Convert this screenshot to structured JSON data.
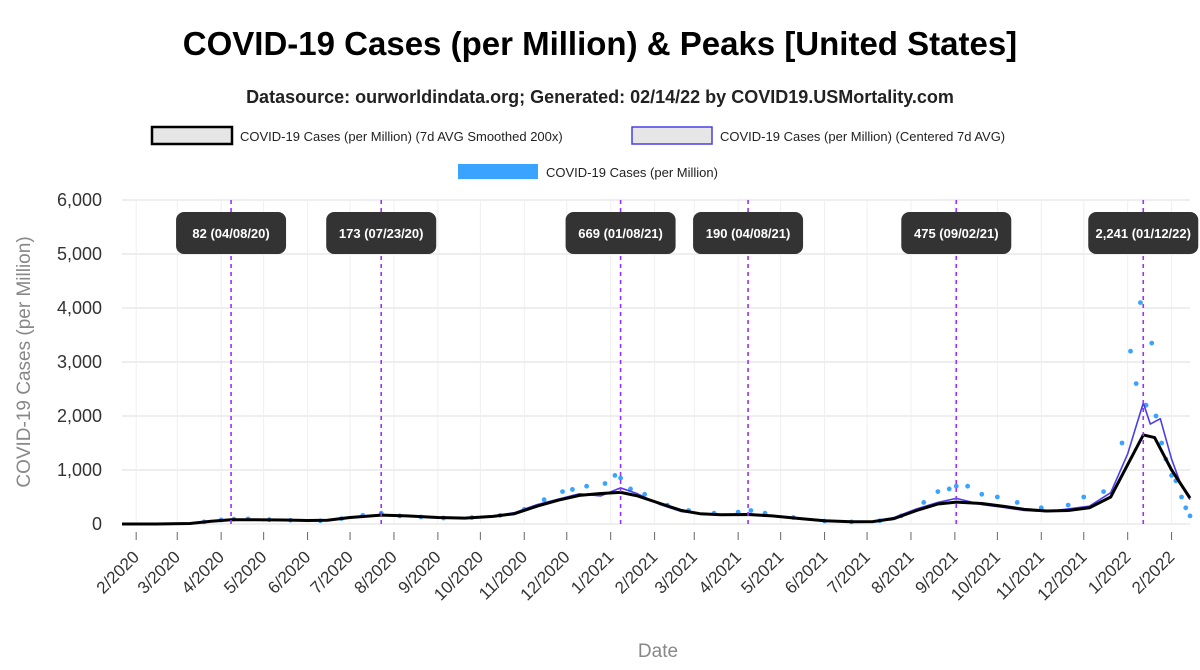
{
  "chart_data": {
    "type": "line",
    "title": "COVID-19 Cases (per Million) & Peaks [United States]",
    "subtitle": "Datasource: ourworldindata.org; Generated: 02/14/22 by COVID19.USMortality.com",
    "xlabel": "Date",
    "ylabel": "COVID-19 Cases (per Million)",
    "ylim": [
      0,
      6000
    ],
    "yticks": [
      0,
      1000,
      2000,
      3000,
      4000,
      5000,
      6000
    ],
    "ytick_labels": [
      "0",
      "1,000",
      "2,000",
      "3,000",
      "4,000",
      "5,000",
      "6,000"
    ],
    "xlim": [
      "2020-01-22",
      "2022-02-14"
    ],
    "x_ticks": [
      {
        "date": "2020-02-01",
        "label": "2/2020"
      },
      {
        "date": "2020-03-01",
        "label": "3/2020"
      },
      {
        "date": "2020-04-01",
        "label": "4/2020"
      },
      {
        "date": "2020-05-01",
        "label": "5/2020"
      },
      {
        "date": "2020-06-01",
        "label": "6/2020"
      },
      {
        "date": "2020-07-01",
        "label": "7/2020"
      },
      {
        "date": "2020-08-01",
        "label": "8/2020"
      },
      {
        "date": "2020-09-01",
        "label": "9/2020"
      },
      {
        "date": "2020-10-01",
        "label": "10/2020"
      },
      {
        "date": "2020-11-01",
        "label": "11/2020"
      },
      {
        "date": "2020-12-01",
        "label": "12/2020"
      },
      {
        "date": "2021-01-01",
        "label": "1/2021"
      },
      {
        "date": "2021-02-01",
        "label": "2/2021"
      },
      {
        "date": "2021-03-01",
        "label": "3/2021"
      },
      {
        "date": "2021-04-01",
        "label": "4/2021"
      },
      {
        "date": "2021-05-01",
        "label": "5/2021"
      },
      {
        "date": "2021-06-01",
        "label": "6/2021"
      },
      {
        "date": "2021-07-01",
        "label": "7/2021"
      },
      {
        "date": "2021-08-01",
        "label": "8/2021"
      },
      {
        "date": "2021-09-01",
        "label": "9/2021"
      },
      {
        "date": "2021-10-01",
        "label": "10/2021"
      },
      {
        "date": "2021-11-01",
        "label": "11/2021"
      },
      {
        "date": "2021-12-01",
        "label": "12/2021"
      },
      {
        "date": "2022-01-01",
        "label": "1/2022"
      },
      {
        "date": "2022-02-01",
        "label": "2/2022"
      }
    ],
    "grid": true,
    "legend": {
      "placement": "top",
      "entries": [
        {
          "label": "COVID-19 Cases (per Million) (7d AVG Smoothed 200x)",
          "color": "#000000",
          "fill": "#e6e6e6"
        },
        {
          "label": "COVID-19 Cases (per Million) (Centered 7d AVG)",
          "color": "#4a3ee8",
          "fill": "#e6e6e6"
        },
        {
          "label": "COVID-19 Cases (per Million)",
          "color": "#3aa3ff"
        }
      ]
    },
    "series": [
      {
        "name": "COVID-19 Cases (per Million) (7d AVG Smoothed 200x)",
        "style": "line",
        "color": "#000000",
        "points": [
          [
            "2020-01-22",
            0
          ],
          [
            "2020-02-15",
            0
          ],
          [
            "2020-03-10",
            10
          ],
          [
            "2020-03-25",
            50
          ],
          [
            "2020-04-08",
            80
          ],
          [
            "2020-04-25",
            80
          ],
          [
            "2020-05-15",
            75
          ],
          [
            "2020-06-01",
            65
          ],
          [
            "2020-06-15",
            70
          ],
          [
            "2020-07-01",
            120
          ],
          [
            "2020-07-23",
            165
          ],
          [
            "2020-08-10",
            150
          ],
          [
            "2020-09-01",
            120
          ],
          [
            "2020-09-20",
            110
          ],
          [
            "2020-10-10",
            140
          ],
          [
            "2020-10-25",
            190
          ],
          [
            "2020-11-10",
            330
          ],
          [
            "2020-11-25",
            440
          ],
          [
            "2020-12-10",
            530
          ],
          [
            "2020-12-25",
            565
          ],
          [
            "2021-01-08",
            585
          ],
          [
            "2021-01-20",
            520
          ],
          [
            "2021-02-05",
            380
          ],
          [
            "2021-02-20",
            250
          ],
          [
            "2021-03-05",
            190
          ],
          [
            "2021-03-20",
            170
          ],
          [
            "2021-04-08",
            175
          ],
          [
            "2021-04-25",
            150
          ],
          [
            "2021-05-15",
            100
          ],
          [
            "2021-06-01",
            60
          ],
          [
            "2021-06-20",
            40
          ],
          [
            "2021-07-05",
            45
          ],
          [
            "2021-07-20",
            100
          ],
          [
            "2021-08-05",
            250
          ],
          [
            "2021-08-20",
            370
          ],
          [
            "2021-09-02",
            405
          ],
          [
            "2021-09-20",
            380
          ],
          [
            "2021-10-05",
            330
          ],
          [
            "2021-10-20",
            270
          ],
          [
            "2021-11-05",
            240
          ],
          [
            "2021-11-20",
            250
          ],
          [
            "2021-12-05",
            300
          ],
          [
            "2021-12-20",
            500
          ],
          [
            "2022-01-01",
            1100
          ],
          [
            "2022-01-12",
            1650
          ],
          [
            "2022-01-20",
            1600
          ],
          [
            "2022-02-01",
            1000
          ],
          [
            "2022-02-14",
            480
          ]
        ]
      },
      {
        "name": "COVID-19 Cases (per Million) (Centered 7d AVG)",
        "style": "line",
        "color": "#4a3ee8",
        "points": [
          [
            "2020-01-22",
            0
          ],
          [
            "2020-02-15",
            0
          ],
          [
            "2020-03-10",
            8
          ],
          [
            "2020-03-25",
            55
          ],
          [
            "2020-04-08",
            85
          ],
          [
            "2020-04-25",
            85
          ],
          [
            "2020-05-15",
            72
          ],
          [
            "2020-06-01",
            60
          ],
          [
            "2020-06-15",
            75
          ],
          [
            "2020-07-01",
            130
          ],
          [
            "2020-07-23",
            173
          ],
          [
            "2020-08-10",
            145
          ],
          [
            "2020-09-01",
            115
          ],
          [
            "2020-09-20",
            115
          ],
          [
            "2020-10-10",
            150
          ],
          [
            "2020-10-25",
            210
          ],
          [
            "2020-11-10",
            360
          ],
          [
            "2020-11-25",
            460
          ],
          [
            "2020-12-10",
            560
          ],
          [
            "2020-12-25",
            520
          ],
          [
            "2021-01-08",
            669
          ],
          [
            "2021-01-20",
            560
          ],
          [
            "2021-02-05",
            360
          ],
          [
            "2021-02-20",
            230
          ],
          [
            "2021-03-05",
            195
          ],
          [
            "2021-03-20",
            165
          ],
          [
            "2021-04-08",
            190
          ],
          [
            "2021-04-25",
            155
          ],
          [
            "2021-05-15",
            95
          ],
          [
            "2021-06-01",
            50
          ],
          [
            "2021-06-20",
            38
          ],
          [
            "2021-07-05",
            50
          ],
          [
            "2021-07-20",
            120
          ],
          [
            "2021-08-05",
            280
          ],
          [
            "2021-08-20",
            400
          ],
          [
            "2021-09-02",
            475
          ],
          [
            "2021-09-20",
            360
          ],
          [
            "2021-10-05",
            310
          ],
          [
            "2021-10-20",
            250
          ],
          [
            "2021-11-05",
            230
          ],
          [
            "2021-11-20",
            280
          ],
          [
            "2021-12-05",
            330
          ],
          [
            "2021-12-20",
            580
          ],
          [
            "2022-01-01",
            1300
          ],
          [
            "2022-01-08",
            1900
          ],
          [
            "2022-01-12",
            2241
          ],
          [
            "2022-01-17",
            1850
          ],
          [
            "2022-01-24",
            1950
          ],
          [
            "2022-02-01",
            1200
          ],
          [
            "2022-02-08",
            700
          ],
          [
            "2022-02-14",
            450
          ]
        ]
      },
      {
        "name": "COVID-19 Cases (per Million)",
        "style": "scatter",
        "color": "#3aa3ff",
        "points": [
          [
            "2020-03-20",
            40
          ],
          [
            "2020-04-01",
            75
          ],
          [
            "2020-04-10",
            90
          ],
          [
            "2020-04-20",
            95
          ],
          [
            "2020-05-05",
            80
          ],
          [
            "2020-05-20",
            70
          ],
          [
            "2020-06-10",
            60
          ],
          [
            "2020-06-25",
            100
          ],
          [
            "2020-07-10",
            160
          ],
          [
            "2020-07-23",
            200
          ],
          [
            "2020-08-05",
            150
          ],
          [
            "2020-08-20",
            130
          ],
          [
            "2020-09-05",
            110
          ],
          [
            "2020-09-25",
            120
          ],
          [
            "2020-10-15",
            160
          ],
          [
            "2020-11-01",
            270
          ],
          [
            "2020-11-15",
            450
          ],
          [
            "2020-11-28",
            600
          ],
          [
            "2020-12-05",
            640
          ],
          [
            "2020-12-15",
            700
          ],
          [
            "2020-12-28",
            750
          ],
          [
            "2021-01-04",
            900
          ],
          [
            "2021-01-08",
            850
          ],
          [
            "2021-01-15",
            650
          ],
          [
            "2021-01-25",
            550
          ],
          [
            "2021-02-10",
            350
          ],
          [
            "2021-02-25",
            250
          ],
          [
            "2021-03-15",
            200
          ],
          [
            "2021-04-01",
            220
          ],
          [
            "2021-04-10",
            250
          ],
          [
            "2021-04-20",
            200
          ],
          [
            "2021-05-10",
            120
          ],
          [
            "2021-06-01",
            55
          ],
          [
            "2021-06-20",
            40
          ],
          [
            "2021-07-10",
            60
          ],
          [
            "2021-07-25",
            150
          ],
          [
            "2021-08-10",
            400
          ],
          [
            "2021-08-20",
            600
          ],
          [
            "2021-08-28",
            650
          ],
          [
            "2021-09-02",
            700
          ],
          [
            "2021-09-10",
            700
          ],
          [
            "2021-09-20",
            550
          ],
          [
            "2021-10-01",
            500
          ],
          [
            "2021-10-15",
            400
          ],
          [
            "2021-11-01",
            300
          ],
          [
            "2021-11-20",
            350
          ],
          [
            "2021-12-01",
            500
          ],
          [
            "2021-12-15",
            600
          ],
          [
            "2021-12-28",
            1500
          ],
          [
            "2022-01-03",
            3200
          ],
          [
            "2022-01-07",
            2600
          ],
          [
            "2022-01-10",
            4100
          ],
          [
            "2022-01-14",
            2200
          ],
          [
            "2022-01-18",
            3350
          ],
          [
            "2022-01-21",
            2000
          ],
          [
            "2022-01-25",
            1500
          ],
          [
            "2022-01-28",
            1200
          ],
          [
            "2022-02-01",
            900
          ],
          [
            "2022-02-04",
            800
          ],
          [
            "2022-02-08",
            500
          ],
          [
            "2022-02-11",
            300
          ],
          [
            "2022-02-14",
            150
          ]
        ]
      }
    ],
    "peaks": [
      {
        "date": "2020-04-08",
        "label": "82 (04/08/20)"
      },
      {
        "date": "2020-07-23",
        "label": "173 (07/23/20)"
      },
      {
        "date": "2021-01-08",
        "label": "669 (01/08/21)"
      },
      {
        "date": "2021-04-08",
        "label": "190 (04/08/21)"
      },
      {
        "date": "2021-09-02",
        "label": "475 (09/02/21)"
      },
      {
        "date": "2022-01-12",
        "label": "2,241 (01/12/22)"
      }
    ],
    "peak_line_color": "#9b30ff",
    "peak_label_bg": "#333333"
  }
}
